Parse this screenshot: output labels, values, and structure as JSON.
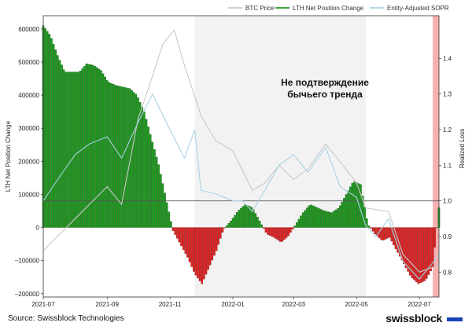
{
  "chart_data": {
    "type": "bar",
    "title": "",
    "annotation": "Не подтверждение\nбычьего тренда",
    "xlabel": "",
    "ylabel_left": "LTH Net Position Change",
    "ylabel_right": "Realized Loss",
    "x_range": [
      "2021-07-01",
      "2022-07-20"
    ],
    "x_ticks": [
      "2021-07",
      "2021-09",
      "2021-11",
      "2022-01",
      "2022-03",
      "2022-05",
      "2022-07"
    ],
    "y_left_range": [
      -210000,
      640000
    ],
    "y_left_ticks": [
      "600000",
      "500000",
      "400000",
      "300000",
      "200000",
      "100000",
      "0",
      "−100000",
      "−200000"
    ],
    "y_right_range": [
      0.73,
      1.52
    ],
    "y_right_ticks": [
      "1.4",
      "1.3",
      "1.2",
      "1.1",
      "1.0",
      "0.9",
      "0.8"
    ],
    "reference_line": {
      "axis": "right",
      "value": 1.0
    },
    "shaded_regions": [
      {
        "from": "2021-11-25",
        "to": "2022-05-10",
        "color": "#f2f2f2"
      },
      {
        "from": "2022-07-14",
        "to": "2022-07-20",
        "color": "#f7b0b0"
      }
    ],
    "legend": [
      {
        "name": "BTC Price",
        "color": "#c8c8c8"
      },
      {
        "name": "LTH Net Position Change",
        "color": "#1f9a1f"
      },
      {
        "name": "Entity-Adjusted SOPR",
        "color": "#a9d3e3"
      }
    ],
    "lth_net_position_change": {
      "dates": [
        "2021-07-01",
        "2021-07-08",
        "2021-07-15",
        "2021-07-22",
        "2021-07-29",
        "2021-08-05",
        "2021-08-12",
        "2021-08-19",
        "2021-08-26",
        "2021-09-02",
        "2021-09-09",
        "2021-09-16",
        "2021-09-23",
        "2021-09-30",
        "2021-10-07",
        "2021-10-14",
        "2021-10-21",
        "2021-10-28",
        "2021-11-04",
        "2021-11-11",
        "2021-11-18",
        "2021-11-25",
        "2021-12-02",
        "2021-12-09",
        "2021-12-16",
        "2021-12-23",
        "2021-12-30",
        "2022-01-06",
        "2022-01-13",
        "2022-01-20",
        "2022-01-27",
        "2022-02-03",
        "2022-02-10",
        "2022-02-17",
        "2022-02-24",
        "2022-03-03",
        "2022-03-10",
        "2022-03-17",
        "2022-03-24",
        "2022-03-31",
        "2022-04-07",
        "2022-04-14",
        "2022-04-21",
        "2022-04-28",
        "2022-05-05",
        "2022-05-12",
        "2022-05-19",
        "2022-05-26",
        "2022-06-02",
        "2022-06-09",
        "2022-06-16",
        "2022-06-23",
        "2022-06-30",
        "2022-07-07",
        "2022-07-14",
        "2022-07-20"
      ],
      "values": [
        610000,
        580000,
        520000,
        470000,
        470000,
        470000,
        495000,
        490000,
        475000,
        440000,
        430000,
        425000,
        420000,
        400000,
        350000,
        270000,
        190000,
        90000,
        -10000,
        -50000,
        -90000,
        -140000,
        -170000,
        -120000,
        -70000,
        -5000,
        20000,
        50000,
        70000,
        60000,
        20000,
        -20000,
        -30000,
        -45000,
        -25000,
        10000,
        45000,
        70000,
        60000,
        50000,
        45000,
        60000,
        100000,
        140000,
        130000,
        10000,
        -20000,
        -40000,
        -30000,
        -70000,
        -110000,
        -150000,
        -170000,
        -160000,
        -120000,
        60000
      ]
    },
    "entity_adjusted_sopr": {
      "dates": [
        "2021-07-01",
        "2021-07-15",
        "2021-08-01",
        "2021-08-15",
        "2021-09-01",
        "2021-09-15",
        "2021-10-01",
        "2021-10-15",
        "2021-11-01",
        "2021-11-15",
        "2021-11-25",
        "2021-12-01",
        "2021-12-15",
        "2022-01-01",
        "2022-01-10",
        "2022-01-20",
        "2022-02-01",
        "2022-02-15",
        "2022-03-01",
        "2022-03-15",
        "2022-04-01",
        "2022-04-15",
        "2022-05-01",
        "2022-05-10",
        "2022-05-20",
        "2022-06-01",
        "2022-06-15",
        "2022-07-01",
        "2022-07-15",
        "2022-07-20"
      ],
      "values": [
        1.0,
        1.06,
        1.13,
        1.16,
        1.18,
        1.12,
        1.22,
        1.3,
        1.2,
        1.12,
        1.2,
        1.03,
        1.02,
        1.0,
        1.0,
        0.97,
        1.03,
        1.1,
        1.13,
        1.08,
        1.15,
        1.04,
        1.01,
        0.93,
        0.9,
        0.95,
        0.83,
        0.78,
        0.83,
        0.85
      ]
    },
    "btc_price_scaled": {
      "dates": [
        "2021-07-01",
        "2021-08-01",
        "2021-09-01",
        "2021-09-15",
        "2021-10-01",
        "2021-10-15",
        "2021-10-25",
        "2021-11-05",
        "2021-11-15",
        "2021-12-01",
        "2021-12-15",
        "2022-01-01",
        "2022-01-20",
        "2022-02-01",
        "2022-02-15",
        "2022-03-01",
        "2022-03-15",
        "2022-04-01",
        "2022-04-15",
        "2022-05-01",
        "2022-05-10",
        "2022-06-01",
        "2022-06-15",
        "2022-07-01",
        "2022-07-20"
      ],
      "values": [
        0.86,
        0.95,
        1.04,
        0.99,
        1.23,
        1.35,
        1.44,
        1.48,
        1.38,
        1.24,
        1.17,
        1.14,
        1.03,
        1.05,
        1.1,
        1.06,
        1.09,
        1.16,
        1.11,
        1.05,
        0.98,
        0.97,
        0.85,
        0.8,
        0.82
      ]
    }
  },
  "footer": {
    "source": "Source: Swissblock Technologies",
    "brand": "swissblock"
  }
}
